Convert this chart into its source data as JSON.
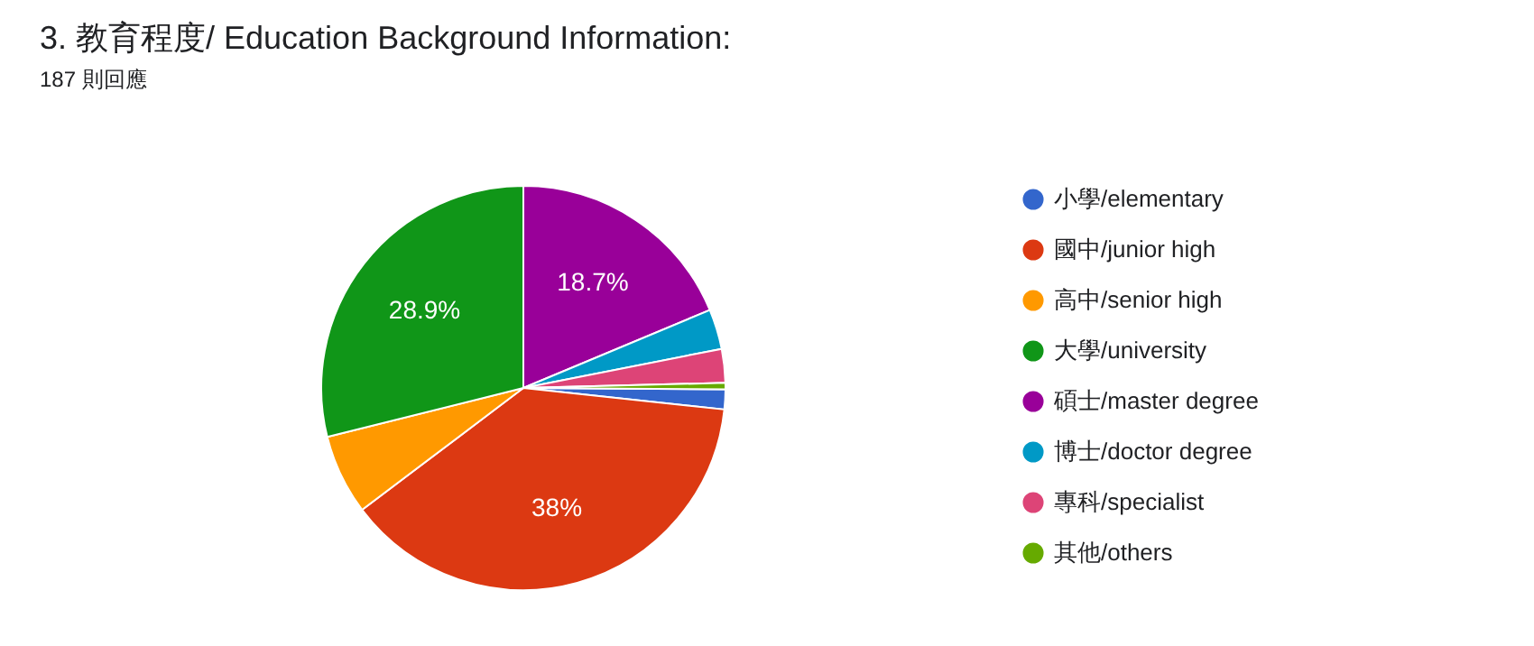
{
  "chart_data": {
    "type": "pie",
    "title": "3. 教育程度/ Education Background Information:",
    "subtitle": "187 則回應",
    "categories": [
      "小學/elementary",
      "國中/junior high",
      "高中/senior high",
      "大學/university",
      "碩士/master degree",
      "博士/doctor degree",
      "專科/specialist",
      "其他/others"
    ],
    "values": [
      1.6,
      38,
      6.4,
      28.9,
      18.7,
      3.2,
      2.7,
      0.5
    ],
    "colors": [
      "#3366cc",
      "#dc3912",
      "#ff9900",
      "#109618",
      "#990099",
      "#0099c6",
      "#dd4477",
      "#66aa00"
    ],
    "value_labels": [
      null,
      "38%",
      null,
      "28.9%",
      "18.7%",
      null,
      null,
      null
    ],
    "legend": "right"
  }
}
